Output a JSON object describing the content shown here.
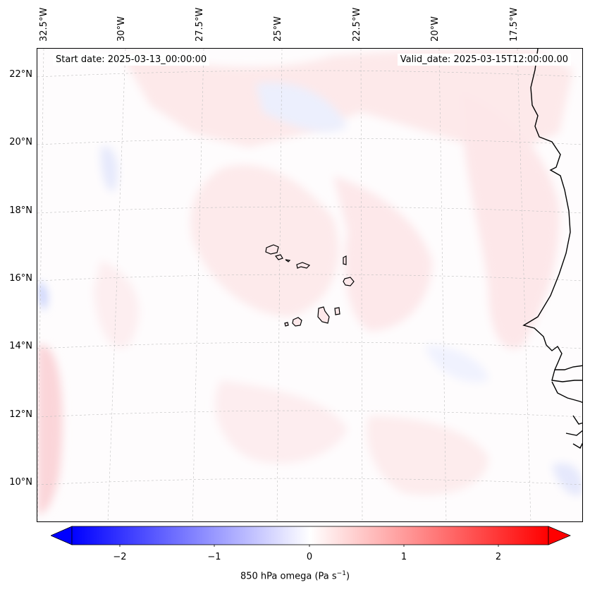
{
  "header": {
    "start_date": "Start date: 2025-03-13_00:00:00",
    "valid_date": "Valid_date: 2025-03-15T12:00:00.00"
  },
  "lon_labels": [
    "32.5°W",
    "30°W",
    "27.5°W",
    "25°W",
    "22.5°W",
    "20°W",
    "17.5°W"
  ],
  "lat_labels": [
    "22°N",
    "20°N",
    "18°N",
    "16°N",
    "14°N",
    "12°N",
    "10°N"
  ],
  "colorbar": {
    "ticks": [
      "−2",
      "−1",
      "0",
      "1",
      "2"
    ],
    "label_prefix": "850 hPa omega (Pa s",
    "label_exp": "−1",
    "label_suffix": ")",
    "range": [
      -2.75,
      2.75
    ],
    "colors": {
      "min": "#0000ff",
      "mid": "#ffffff",
      "max": "#ff0000"
    }
  },
  "map": {
    "field": "850 hPa omega",
    "dominant": "near zero, weak positive",
    "coastline_color": "#000000",
    "grid": true
  }
}
